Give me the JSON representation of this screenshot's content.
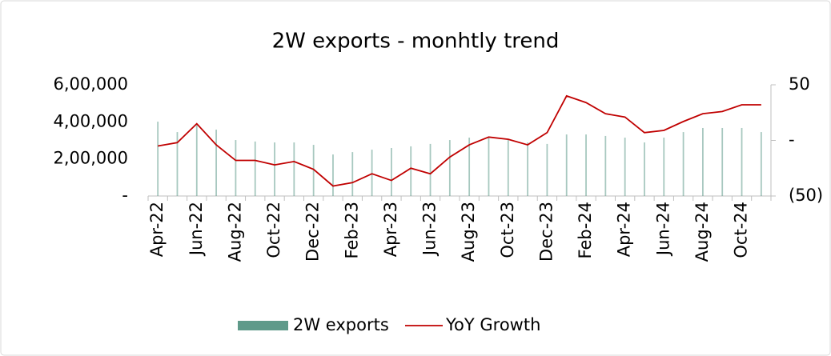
{
  "chart_data": {
    "type": "bar-line",
    "title": "2W exports - monhtly trend",
    "categories": [
      "Apr-22",
      null,
      "Jun-22",
      null,
      "Aug-22",
      null,
      "Oct-22",
      null,
      "Dec-22",
      null,
      "Feb-23",
      null,
      "Apr-23",
      null,
      "Jun-23",
      null,
      "Aug-23",
      null,
      "Oct-23",
      null,
      "Dec-23",
      null,
      "Feb-24",
      null,
      "Apr-24",
      null,
      "Jun-24",
      null,
      "Aug-24",
      null,
      "Oct-24",
      null
    ],
    "series": [
      {
        "name": "2W exports",
        "type": "bar",
        "axis": "y",
        "color": "#5f9a8a",
        "values": [
          401000,
          345000,
          390000,
          358000,
          302000,
          294000,
          289000,
          289000,
          276000,
          224000,
          237000,
          250000,
          259000,
          268000,
          281000,
          302000,
          315000,
          315000,
          302000,
          289000,
          281000,
          332000,
          332000,
          324000,
          315000,
          289000,
          315000,
          345000,
          367000,
          367000,
          367000,
          345000
        ]
      },
      {
        "name": "YoY Growth",
        "type": "line",
        "axis": "y2",
        "color": "#c00000",
        "values": [
          -5,
          -2,
          15,
          -4,
          -18,
          -18,
          -22,
          -19,
          -26,
          -41,
          -38,
          -30,
          -36,
          -25,
          -30,
          -15,
          -4,
          3,
          1,
          -4,
          7,
          40,
          34,
          24,
          21,
          7,
          9,
          17,
          24,
          26,
          32,
          32
        ]
      }
    ],
    "ylim": [
      0,
      600000
    ],
    "yticks": [
      {
        "value": 0,
        "label": "-"
      },
      {
        "value": 200000,
        "label": "2,00,000"
      },
      {
        "value": 400000,
        "label": "4,00,000"
      },
      {
        "value": 600000,
        "label": "6,00,000"
      }
    ],
    "y2lim": [
      -50,
      50
    ],
    "y2ticks": [
      {
        "value": -50,
        "label": "(50)"
      },
      {
        "value": 0,
        "label": "-"
      },
      50
    ],
    "legend": "bottom"
  }
}
